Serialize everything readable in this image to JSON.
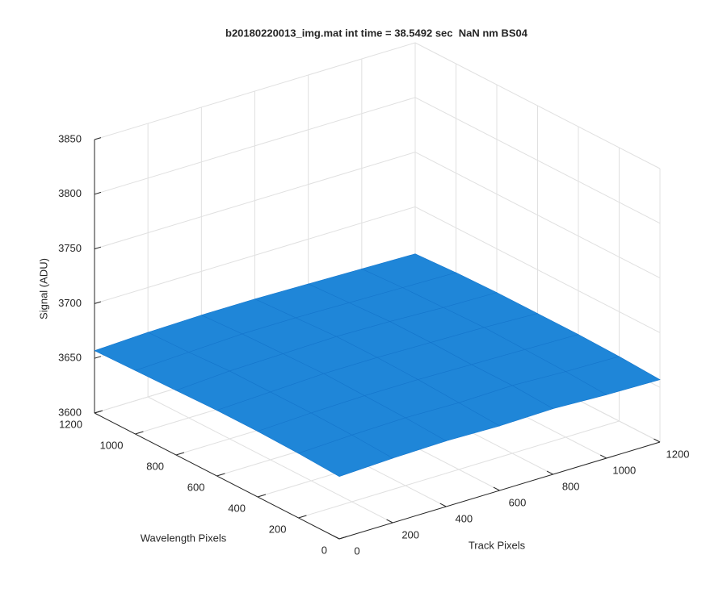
{
  "chart_data": {
    "type": "surface",
    "title": "b20180220013_img.mat int time = 38.5492 sec  NaN nm BS04",
    "xlabel": "Track Pixels",
    "ylabel": "Wavelength Pixels",
    "zlabel": "Signal (ADU)",
    "x": [
      0,
      200,
      400,
      600,
      800,
      1000,
      1200
    ],
    "y": [
      0,
      200,
      400,
      600,
      800,
      1000,
      1200
    ],
    "z": [
      [
        3657,
        3659,
        3660,
        3659,
        3660,
        3658,
        3657
      ],
      [
        3659,
        3661,
        3662,
        3661,
        3662,
        3660,
        3659
      ],
      [
        3660,
        3662,
        3663,
        3663,
        3662,
        3661,
        3660
      ],
      [
        3660,
        3662,
        3664,
        3664,
        3663,
        3662,
        3660
      ],
      [
        3659,
        3662,
        3663,
        3664,
        3663,
        3661,
        3660
      ],
      [
        3658,
        3660,
        3662,
        3662,
        3661,
        3660,
        3659
      ],
      [
        3657,
        3659,
        3660,
        3660,
        3659,
        3658,
        3657
      ]
    ],
    "color": "#1f86d8",
    "xlim": [
      0,
      1200
    ],
    "ylim": [
      0,
      1200
    ],
    "zlim": [
      3600,
      3850
    ],
    "xticks": [
      0,
      200,
      400,
      600,
      800,
      1000,
      1200
    ],
    "yticks": [
      0,
      200,
      400,
      600,
      800,
      1000,
      1200
    ],
    "zticks": [
      3600,
      3650,
      3700,
      3750,
      3800,
      3850
    ],
    "grid": true
  }
}
